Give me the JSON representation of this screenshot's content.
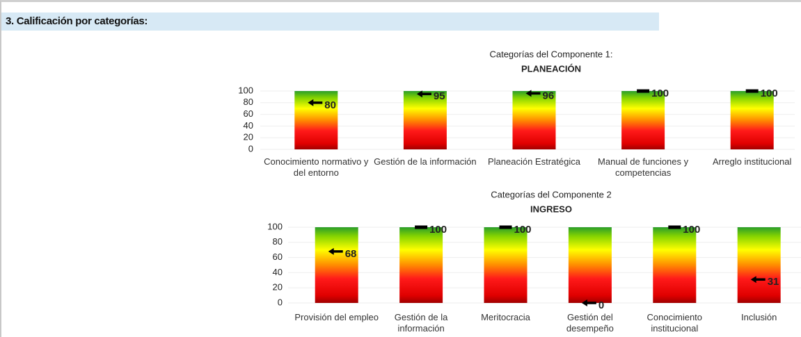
{
  "header": {
    "title": "3. Calificación por categorías:"
  },
  "chart_data": [
    {
      "type": "bar",
      "title": "Categorías del Componente 1:",
      "subtitle": "PLANEACIÓN",
      "categories": [
        "Conocimiento normativo y del entorno",
        "Gestión de la información",
        "Planeación Estratégica",
        "Manual de funciones y competencias",
        "Arreglo institucional"
      ],
      "values": [
        80,
        95,
        96,
        100,
        100
      ],
      "ylim": [
        0,
        100
      ],
      "yticks": [
        0,
        20,
        40,
        60,
        80,
        100
      ],
      "grid": true
    },
    {
      "type": "bar",
      "title": "Categorías del Componente 2",
      "subtitle": "INGRESO",
      "categories": [
        "Provisión del empleo",
        "Gestión de la información",
        "Meritocracia",
        "Gestión del desempeño",
        "Conocimiento institucional",
        "Inclusión"
      ],
      "values": [
        68,
        100,
        100,
        0,
        100,
        31
      ],
      "ylim": [
        0,
        100
      ],
      "yticks": [
        0,
        20,
        40,
        60,
        80,
        100
      ],
      "grid": true
    }
  ]
}
